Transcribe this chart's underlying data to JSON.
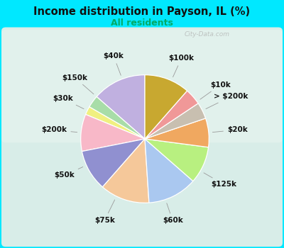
{
  "title": "Income distribution in Payson, IL (%)",
  "subtitle": "All residents",
  "title_color": "#111111",
  "subtitle_color": "#00aa66",
  "background_outer": "#00e8ff",
  "background_inner_top": "#d0ede8",
  "background_inner_bot": "#d8f0d0",
  "watermark": "City-Data.com",
  "labels": [
    "$100k",
    "$10k",
    "> $200k",
    "$20k",
    "$125k",
    "$60k",
    "$75k",
    "$50k",
    "$200k",
    "$30k",
    "$150k",
    "$40k"
  ],
  "values": [
    13,
    3,
    2,
    9,
    10,
    12,
    12,
    9,
    7,
    4,
    4,
    11
  ],
  "colors": [
    "#c0b0e0",
    "#a8dda8",
    "#f0f080",
    "#f8b8c8",
    "#9090d0",
    "#f5c89a",
    "#aac8f0",
    "#b8f080",
    "#f0a860",
    "#c8bfb0",
    "#f09898",
    "#c8a830"
  ],
  "startangle": 90,
  "label_fontsize": 7.5,
  "label_color": "#111111"
}
